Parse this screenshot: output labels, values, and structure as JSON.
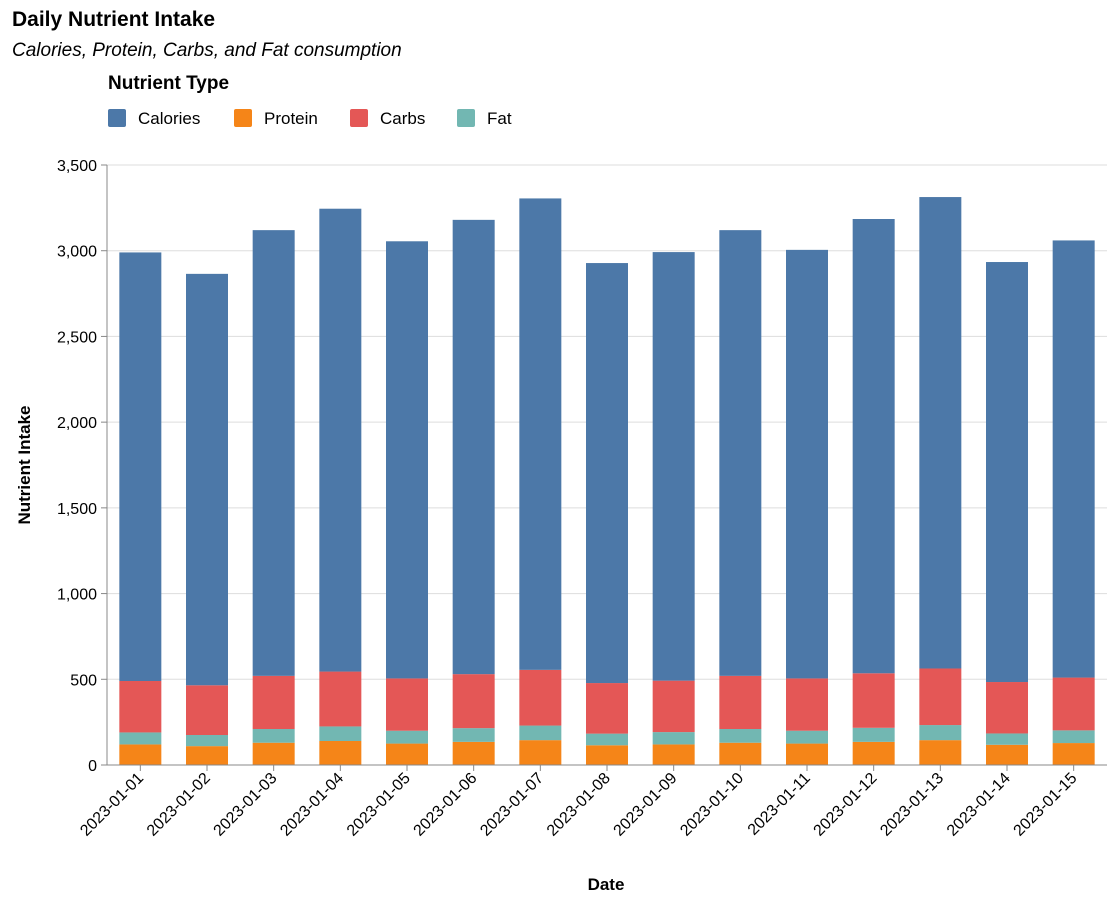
{
  "chart_data": {
    "type": "bar",
    "stacked": true,
    "title": "Daily Nutrient Intake",
    "subtitle": "Calories, Protein, Carbs, and Fat consumption",
    "xlabel": "Date",
    "ylabel": "Nutrient Intake",
    "ylim": [
      0,
      3500
    ],
    "yticks": [
      0,
      500,
      1000,
      1500,
      2000,
      2500,
      3000,
      3500
    ],
    "ytick_labels": [
      "0",
      "500",
      "1,000",
      "1,500",
      "2,000",
      "2,500",
      "3,000",
      "3,500"
    ],
    "grid": true,
    "legend": {
      "title": "Nutrient Type",
      "placement": "top-left"
    },
    "categories": [
      "2023-01-01",
      "2023-01-02",
      "2023-01-03",
      "2023-01-04",
      "2023-01-05",
      "2023-01-06",
      "2023-01-07",
      "2023-01-08",
      "2023-01-09",
      "2023-01-10",
      "2023-01-11",
      "2023-01-12",
      "2023-01-13",
      "2023-01-14",
      "2023-01-15"
    ],
    "series": [
      {
        "name": "Protein",
        "color": "#f58518",
        "values": [
          120,
          110,
          130,
          140,
          125,
          135,
          145,
          115,
          120,
          130,
          125,
          135,
          145,
          118,
          128
        ]
      },
      {
        "name": "Fat",
        "color": "#72b7b2",
        "values": [
          70,
          65,
          80,
          85,
          75,
          80,
          85,
          68,
          72,
          80,
          75,
          82,
          88,
          66,
          74
        ]
      },
      {
        "name": "Carbs",
        "color": "#e45756",
        "values": [
          300,
          290,
          310,
          320,
          305,
          315,
          325,
          295,
          300,
          310,
          305,
          318,
          330,
          300,
          308
        ]
      },
      {
        "name": "Calories",
        "color": "#4c78a8",
        "values": [
          2500,
          2400,
          2600,
          2700,
          2550,
          2650,
          2750,
          2450,
          2500,
          2600,
          2500,
          2650,
          2750,
          2450,
          2550
        ]
      }
    ]
  }
}
